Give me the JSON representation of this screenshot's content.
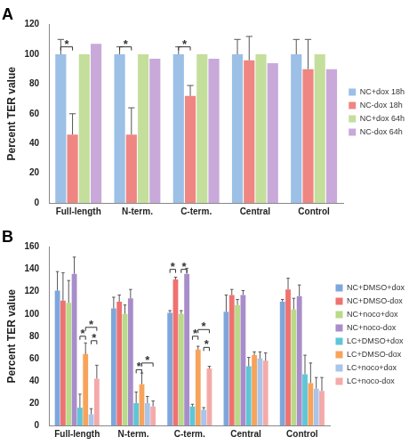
{
  "chart_data": [
    {
      "type": "bar",
      "title": "A",
      "y_label": "Percent TER value",
      "categories": [
        "Full-length",
        "N-term.",
        "C-term.",
        "Central",
        "Control"
      ],
      "series": [
        {
          "name": "NC+dox 18h",
          "color": "#9cc0e6",
          "values": [
            100,
            100,
            100,
            100,
            100
          ],
          "errors": [
            10,
            5,
            5,
            10,
            10
          ]
        },
        {
          "name": "NC-dox 18h",
          "color": "#ef8682",
          "values": [
            46,
            46,
            72,
            96,
            90
          ],
          "errors": [
            14,
            18,
            7,
            16,
            20
          ]
        },
        {
          "name": "NC+dox 64h",
          "color": "#c4df9c",
          "values": [
            100,
            100,
            100,
            100,
            100
          ]
        },
        {
          "name": "NC-dox 64h",
          "color": "#c9a9da",
          "values": [
            107,
            97,
            97,
            94,
            90
          ]
        }
      ],
      "significance": [
        {
          "category": "Full-length",
          "between": [
            "NC+dox 18h",
            "NC-dox 18h"
          ],
          "y": 105,
          "label": "*"
        },
        {
          "category": "N-term.",
          "between": [
            "NC+dox 18h",
            "NC-dox 18h"
          ],
          "y": 105,
          "label": "*"
        },
        {
          "category": "C-term.",
          "between": [
            "NC+dox 18h",
            "NC-dox 18h"
          ],
          "y": 105,
          "label": "*"
        }
      ],
      "ylim": [
        0,
        120
      ],
      "yticks": [
        0,
        20,
        40,
        60,
        80,
        100,
        120
      ],
      "grid": false,
      "legend": "right"
    },
    {
      "type": "bar",
      "title": "B",
      "y_label": "Percent TER value",
      "categories": [
        "Full-length",
        "N-term.",
        "C-term.",
        "Central",
        "Control"
      ],
      "series": [
        {
          "name": "NC+DMSO+dox",
          "color": "#7fa6dc",
          "values": [
            121,
            105,
            101,
            102,
            111
          ],
          "errors": [
            17,
            10,
            2,
            15,
            2
          ]
        },
        {
          "name": "NC+DMSO-dox",
          "color": "#ef7270",
          "values": [
            112,
            111,
            131,
            117,
            122
          ],
          "errors": [
            25,
            6,
            2,
            5,
            10
          ]
        },
        {
          "name": "NC+noco+dox",
          "color": "#b9da88",
          "values": [
            110,
            100,
            100,
            108,
            104
          ],
          "errors": [
            20,
            8,
            3,
            5,
            10
          ]
        },
        {
          "name": "NC+noco-dox",
          "color": "#a88dca",
          "values": [
            136,
            114,
            136,
            117,
            116
          ],
          "errors": [
            15,
            8,
            5,
            4,
            10
          ]
        },
        {
          "name": "LC+DMSO+dox",
          "color": "#5ec6d6",
          "values": [
            16,
            20,
            17,
            53,
            46
          ],
          "errors": [
            12,
            10,
            2,
            8,
            17
          ]
        },
        {
          "name": "LC+DMSO-dox",
          "color": "#f7a35c",
          "values": [
            64,
            37,
            68,
            63,
            38
          ],
          "errors": [
            10,
            10,
            3,
            3,
            18
          ]
        },
        {
          "name": "LC+noco+dox",
          "color": "#aac4ea",
          "values": [
            10,
            20,
            14,
            60,
            33
          ],
          "errors": [
            5,
            6,
            2,
            6,
            10
          ]
        },
        {
          "name": "LC+noco-dox",
          "color": "#f4aaa8",
          "values": [
            42,
            17,
            51,
            58,
            31
          ],
          "errors": [
            12,
            5,
            2,
            7,
            12
          ]
        }
      ],
      "significance": [
        {
          "category": "Full-length",
          "between": [
            "LC+DMSO+dox",
            "LC+DMSO-dox"
          ],
          "y": 80,
          "label": "*"
        },
        {
          "category": "Full-length",
          "between": [
            "LC+DMSO-dox",
            "LC+noco-dox"
          ],
          "y": 88,
          "label": "*"
        },
        {
          "category": "Full-length",
          "between": [
            "LC+noco+dox",
            "LC+noco-dox"
          ],
          "y": 76,
          "label": "*"
        },
        {
          "category": "N-term.",
          "between": [
            "LC+DMSO+dox",
            "LC+DMSO-dox"
          ],
          "y": 50,
          "label": "*"
        },
        {
          "category": "N-term.",
          "between": [
            "LC+DMSO-dox",
            "LC+noco-dox"
          ],
          "y": 56,
          "label": "*"
        },
        {
          "category": "C-term.",
          "between": [
            "NC+DMSO+dox",
            "NC+DMSO-dox"
          ],
          "y": 140,
          "label": "*"
        },
        {
          "category": "C-term.",
          "between": [
            "NC+noco+dox",
            "NC+noco-dox"
          ],
          "y": 140,
          "label": "*"
        },
        {
          "category": "C-term.",
          "between": [
            "LC+DMSO+dox",
            "LC+DMSO-dox"
          ],
          "y": 80,
          "label": "*"
        },
        {
          "category": "C-term.",
          "between": [
            "LC+DMSO-dox",
            "LC+noco-dox"
          ],
          "y": 86,
          "label": "*"
        },
        {
          "category": "C-term.",
          "between": [
            "LC+noco+dox",
            "LC+noco-dox"
          ],
          "y": 70,
          "label": "*"
        }
      ],
      "ylim": [
        0,
        160
      ],
      "yticks": [
        0,
        20,
        40,
        60,
        80,
        100,
        120,
        140,
        160
      ],
      "grid": false,
      "legend": "right"
    }
  ]
}
